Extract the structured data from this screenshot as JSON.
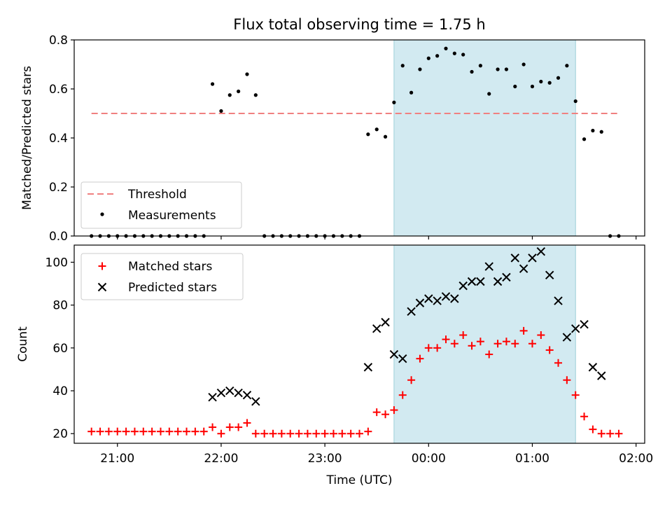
{
  "chart_data": [
    {
      "type": "scatter",
      "title": "Flux total observing time = 1.75 h",
      "xlabel": "",
      "ylabel": "Matched/Predicted stars",
      "ylim": [
        0,
        0.8
      ],
      "yticks": [
        "0.0",
        "0.2",
        "0.4",
        "0.6",
        "0.8"
      ],
      "xlim": [
        "20:35",
        "02:05"
      ],
      "xticks": [
        "21:00",
        "22:00",
        "23:00",
        "00:00",
        "01:00",
        "02:00"
      ],
      "xticklabels_shown": false,
      "shaded_interval": [
        "23:40",
        "01:25"
      ],
      "shade_color": "#add8e6",
      "threshold": {
        "name": "Threshold",
        "y": 0.5,
        "x_range": [
          "20:45",
          "01:50"
        ],
        "color": "#f08080",
        "style": "dashed"
      },
      "legend_position": "lower-left",
      "series": [
        {
          "name": "Measurements",
          "marker": "dot",
          "color": "#000000",
          "points": [
            [
              "20:45",
              0
            ],
            [
              "20:50",
              0
            ],
            [
              "20:55",
              0
            ],
            [
              "21:00",
              0
            ],
            [
              "21:05",
              0
            ],
            [
              "21:10",
              0
            ],
            [
              "21:15",
              0
            ],
            [
              "21:20",
              0
            ],
            [
              "21:25",
              0
            ],
            [
              "21:30",
              0
            ],
            [
              "21:35",
              0
            ],
            [
              "21:40",
              0
            ],
            [
              "21:45",
              0
            ],
            [
              "21:50",
              0
            ],
            [
              "21:55",
              0.62
            ],
            [
              "22:00",
              0.51
            ],
            [
              "22:05",
              0.575
            ],
            [
              "22:10",
              0.59
            ],
            [
              "22:15",
              0.66
            ],
            [
              "22:20",
              0.575
            ],
            [
              "22:25",
              0
            ],
            [
              "22:30",
              0
            ],
            [
              "22:35",
              0
            ],
            [
              "22:40",
              0
            ],
            [
              "22:45",
              0
            ],
            [
              "22:50",
              0
            ],
            [
              "22:55",
              0
            ],
            [
              "23:00",
              0
            ],
            [
              "23:05",
              0
            ],
            [
              "23:10",
              0
            ],
            [
              "23:15",
              0
            ],
            [
              "23:20",
              0
            ],
            [
              "23:25",
              0.415
            ],
            [
              "23:30",
              0.435
            ],
            [
              "23:35",
              0.405
            ],
            [
              "23:40",
              0.545
            ],
            [
              "23:45",
              0.695
            ],
            [
              "23:50",
              0.585
            ],
            [
              "23:55",
              0.68
            ],
            [
              "00:00",
              0.725
            ],
            [
              "00:05",
              0.735
            ],
            [
              "00:10",
              0.765
            ],
            [
              "00:15",
              0.745
            ],
            [
              "00:20",
              0.74
            ],
            [
              "00:25",
              0.67
            ],
            [
              "00:30",
              0.695
            ],
            [
              "00:35",
              0.58
            ],
            [
              "00:40",
              0.68
            ],
            [
              "00:45",
              0.68
            ],
            [
              "00:50",
              0.61
            ],
            [
              "00:55",
              0.7
            ],
            [
              "01:00",
              0.61
            ],
            [
              "01:05",
              0.63
            ],
            [
              "01:10",
              0.625
            ],
            [
              "01:15",
              0.645
            ],
            [
              "01:20",
              0.695
            ],
            [
              "01:25",
              0.55
            ],
            [
              "01:30",
              0.395
            ],
            [
              "01:35",
              0.43
            ],
            [
              "01:40",
              0.425
            ],
            [
              "01:45",
              0
            ],
            [
              "01:50",
              0
            ]
          ]
        }
      ]
    },
    {
      "type": "scatter",
      "title": "",
      "xlabel": "Time (UTC)",
      "ylabel": "Count",
      "ylim": [
        15.5,
        108
      ],
      "yticks": [
        "20",
        "40",
        "60",
        "80",
        "100"
      ],
      "xlim": [
        "20:35",
        "02:05"
      ],
      "xticks": [
        "21:00",
        "22:00",
        "23:00",
        "00:00",
        "01:00",
        "02:00"
      ],
      "shaded_interval": [
        "23:40",
        "01:25"
      ],
      "shade_color": "#add8e6",
      "legend_position": "upper-left",
      "series": [
        {
          "name": "Matched stars",
          "marker": "plus",
          "color": "#ff0000",
          "points": [
            [
              "20:45",
              21
            ],
            [
              "20:50",
              21
            ],
            [
              "20:55",
              21
            ],
            [
              "21:00",
              21
            ],
            [
              "21:05",
              21
            ],
            [
              "21:10",
              21
            ],
            [
              "21:15",
              21
            ],
            [
              "21:20",
              21
            ],
            [
              "21:25",
              21
            ],
            [
              "21:30",
              21
            ],
            [
              "21:35",
              21
            ],
            [
              "21:40",
              21
            ],
            [
              "21:45",
              21
            ],
            [
              "21:50",
              21
            ],
            [
              "21:55",
              23
            ],
            [
              "22:00",
              20
            ],
            [
              "22:05",
              23
            ],
            [
              "22:10",
              23
            ],
            [
              "22:15",
              25
            ],
            [
              "22:20",
              20
            ],
            [
              "22:25",
              20
            ],
            [
              "22:30",
              20
            ],
            [
              "22:35",
              20
            ],
            [
              "22:40",
              20
            ],
            [
              "22:45",
              20
            ],
            [
              "22:50",
              20
            ],
            [
              "22:55",
              20
            ],
            [
              "23:00",
              20
            ],
            [
              "23:05",
              20
            ],
            [
              "23:10",
              20
            ],
            [
              "23:15",
              20
            ],
            [
              "23:20",
              20
            ],
            [
              "23:25",
              21
            ],
            [
              "23:30",
              30
            ],
            [
              "23:35",
              29
            ],
            [
              "23:40",
              31
            ],
            [
              "23:45",
              38
            ],
            [
              "23:50",
              45
            ],
            [
              "23:55",
              55
            ],
            [
              "00:00",
              60
            ],
            [
              "00:05",
              60
            ],
            [
              "00:10",
              64
            ],
            [
              "00:15",
              62
            ],
            [
              "00:20",
              66
            ],
            [
              "00:25",
              61
            ],
            [
              "00:30",
              63
            ],
            [
              "00:35",
              57
            ],
            [
              "00:40",
              62
            ],
            [
              "00:45",
              63
            ],
            [
              "00:50",
              62
            ],
            [
              "00:55",
              68
            ],
            [
              "01:00",
              62
            ],
            [
              "01:05",
              66
            ],
            [
              "01:10",
              59
            ],
            [
              "01:15",
              53
            ],
            [
              "01:20",
              45
            ],
            [
              "01:25",
              38
            ],
            [
              "01:30",
              28
            ],
            [
              "01:35",
              22
            ],
            [
              "01:40",
              20
            ],
            [
              "01:45",
              20
            ],
            [
              "01:50",
              20
            ]
          ]
        },
        {
          "name": "Predicted stars",
          "marker": "x",
          "color": "#000000",
          "points": [
            [
              "21:55",
              37
            ],
            [
              "22:00",
              39
            ],
            [
              "22:05",
              40
            ],
            [
              "22:10",
              39
            ],
            [
              "22:15",
              38
            ],
            [
              "22:20",
              35
            ],
            [
              "23:25",
              51
            ],
            [
              "23:30",
              69
            ],
            [
              "23:35",
              72
            ],
            [
              "23:40",
              57
            ],
            [
              "23:45",
              55
            ],
            [
              "23:50",
              77
            ],
            [
              "23:55",
              81
            ],
            [
              "00:00",
              83
            ],
            [
              "00:05",
              82
            ],
            [
              "00:10",
              84
            ],
            [
              "00:15",
              83
            ],
            [
              "00:20",
              89
            ],
            [
              "00:25",
              91
            ],
            [
              "00:30",
              91
            ],
            [
              "00:35",
              98
            ],
            [
              "00:40",
              91
            ],
            [
              "00:45",
              93
            ],
            [
              "00:50",
              102
            ],
            [
              "00:55",
              97
            ],
            [
              "01:00",
              102
            ],
            [
              "01:05",
              105
            ],
            [
              "01:10",
              94
            ],
            [
              "01:15",
              82
            ],
            [
              "01:20",
              65
            ],
            [
              "01:25",
              69
            ],
            [
              "01:30",
              71
            ],
            [
              "01:35",
              51
            ],
            [
              "01:40",
              47
            ]
          ]
        }
      ]
    }
  ]
}
